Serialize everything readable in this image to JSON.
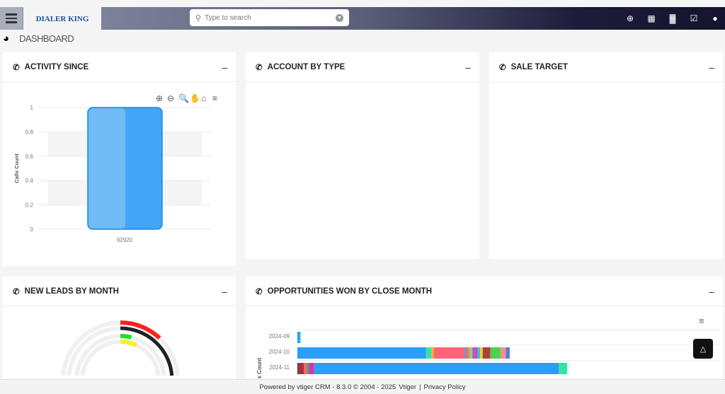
{
  "header": {
    "logo_text": "DIALER KING",
    "search_placeholder": "Type to search",
    "icons": [
      "plus-circle-icon",
      "calendar-icon",
      "bar-chart-icon",
      "checkbox-icon",
      "user-icon"
    ]
  },
  "breadcrumb": {
    "title": "DASHBOARD"
  },
  "widgets": {
    "activity": {
      "title": "ACTIVITY SINCE",
      "minimize": "–"
    },
    "account": {
      "title": "ACCOUNT BY TYPE",
      "minimize": "–"
    },
    "sale": {
      "title": "SALE TARGET",
      "minimize": "–"
    },
    "leads": {
      "title": "NEW LEADS BY MONTH",
      "minimize": "–"
    },
    "opps": {
      "title": "OPPORTUNITIES WON BY CLOSE MONTH",
      "minimize": "–"
    }
  },
  "chart_data": [
    {
      "type": "bar",
      "ylabel": "Calls Count",
      "categories": [
        "92920"
      ],
      "values": [
        1
      ],
      "ylim": [
        0,
        1
      ],
      "yticks": [
        "0",
        "0.2",
        "0.4",
        "0.6",
        "0.8",
        "1"
      ],
      "bar_color": "#42a5f5",
      "grid": true
    },
    {
      "type": "radial-bar",
      "series_colors": [
        "#ff2020",
        "#222222",
        "#20e020",
        "#f5f020"
      ],
      "values_percent": [
        12,
        50,
        4,
        7
      ]
    },
    {
      "type": "bar",
      "orientation": "horizontal",
      "stacked": true,
      "ylabel": "us Count",
      "categories": [
        "2024-09",
        "2024-10",
        "2024-11"
      ],
      "series": [
        [
          {
            "v": 1,
            "c": "#2b9ef7"
          },
          {
            "v": 0.3,
            "c": "#2ee6a8"
          }
        ],
        [
          {
            "v": 50,
            "c": "#2b9ef7"
          },
          {
            "v": 2,
            "c": "#2ee6a8"
          },
          {
            "v": 1,
            "c": "#ffb020"
          },
          {
            "v": 12,
            "c": "#ff6478"
          },
          {
            "v": 1,
            "c": "#7a8fc0"
          },
          {
            "v": 1,
            "c": "#ff7f50"
          },
          {
            "v": 1,
            "c": "#9bd067"
          },
          {
            "v": 1,
            "c": "#a35bd1"
          },
          {
            "v": 1,
            "c": "#e040c0"
          },
          {
            "v": 1,
            "c": "#30c8e0"
          },
          {
            "v": 1,
            "c": "#f5d020"
          },
          {
            "v": 3,
            "c": "#b04040"
          },
          {
            "v": 4,
            "c": "#50d050"
          },
          {
            "v": 2,
            "c": "#f09090"
          },
          {
            "v": 1.5,
            "c": "#5a78e0"
          }
        ],
        [
          {
            "v": 0.5,
            "c": "#553344"
          },
          {
            "v": 2,
            "c": "#a83040"
          },
          {
            "v": 1.5,
            "c": "#e07060"
          },
          {
            "v": 0.8,
            "c": "#4a8ac0"
          },
          {
            "v": 1.7,
            "c": "#e030a0"
          },
          {
            "v": 95,
            "c": "#2b9ef7"
          },
          {
            "v": 3.3,
            "c": "#2ee6a8"
          }
        ]
      ]
    }
  ],
  "footer": {
    "text": "Powered by vtiger CRM - 8.3.0  © 2004 - 2025",
    "vtiger": "Vtiger",
    "sep": "|",
    "privacy": "Privacy Policy"
  }
}
